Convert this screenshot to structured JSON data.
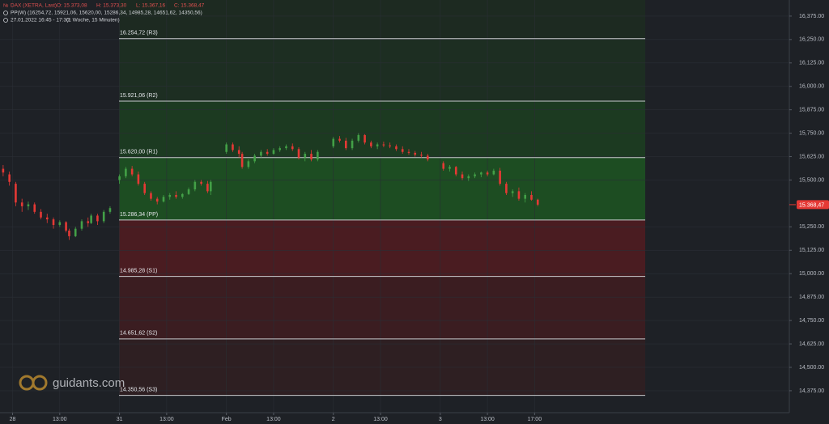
{
  "chart_data": {
    "type": "candlestick",
    "instrument": "DAX (XETRA, Last)",
    "ohlc_texts": [
      "O: 15.373,08",
      "H: 15.373,30",
      "L: 15.367,16",
      "C: 15.368,47"
    ],
    "indicator": "PP(W)",
    "indicator_values": "(16254,72, 15921,06, 15620,00, 15286,34, 14985,28, 14651,62, 14350,56)",
    "time_range": "27.01.2022 16:45 - 17:30",
    "interval": "(1 Woche, 15 Minuten)",
    "watermark": "guidants.com",
    "up_color": "#43a047",
    "down_color": "#e53935",
    "grid": true,
    "xlim": [
      0,
      251
    ],
    "ylim": [
      14258,
      16461
    ],
    "xticks": [
      {
        "value": 4,
        "label": "28"
      },
      {
        "value": 19,
        "label": "13:00"
      },
      {
        "value": 38,
        "label": "31"
      },
      {
        "value": 53,
        "label": "13:00"
      },
      {
        "value": 72,
        "label": "Feb"
      },
      {
        "value": 87,
        "label": "13:00"
      },
      {
        "value": 106,
        "label": "2"
      },
      {
        "value": 121,
        "label": "13:00"
      },
      {
        "value": 140,
        "label": "3"
      },
      {
        "value": 155,
        "label": "13:00"
      },
      {
        "value": 170,
        "label": "17:00"
      }
    ],
    "yticks": [
      {
        "value": 16375,
        "label": "16,375.00"
      },
      {
        "value": 16250,
        "label": "16,250.00"
      },
      {
        "value": 16125,
        "label": "16,125.00"
      },
      {
        "value": 16000,
        "label": "16,000.00"
      },
      {
        "value": 15875,
        "label": "15,875.00"
      },
      {
        "value": 15750,
        "label": "15,750.00"
      },
      {
        "value": 15625,
        "label": "15,625.00"
      },
      {
        "value": 15500,
        "label": "15,500.00"
      },
      {
        "value": 15250,
        "label": "15,250.00"
      },
      {
        "value": 15125,
        "label": "15,125.00"
      },
      {
        "value": 15000,
        "label": "15,000.00"
      },
      {
        "value": 14875,
        "label": "14,875.00"
      },
      {
        "value": 14750,
        "label": "14,750.00"
      },
      {
        "value": 14625,
        "label": "14,625.00"
      },
      {
        "value": 14500,
        "label": "14,500.00"
      },
      {
        "value": 14375,
        "label": "14,375.00"
      }
    ],
    "pivots": [
      {
        "value": 16254.72,
        "label": "16.254,72 (R3)"
      },
      {
        "value": 15921.06,
        "label": "15.921,06 (R2)"
      },
      {
        "value": 15620.0,
        "label": "15.620,00 (R1)"
      },
      {
        "value": 15286.34,
        "label": "15.286,34 (PP)"
      },
      {
        "value": 14985.28,
        "label": "14.985,28 (S1)"
      },
      {
        "value": 14651.62,
        "label": "14.651,62 (S2)"
      },
      {
        "value": 14350.56,
        "label": "14.350,56 (S3)"
      }
    ],
    "last_price": {
      "value": 15368.47,
      "label": "15.368,47"
    },
    "candles": [
      {
        "x": 1,
        "open": 15560,
        "high": 15580,
        "low": 15520,
        "close": 15540
      },
      {
        "x": 3,
        "open": 15530,
        "high": 15545,
        "low": 15470,
        "close": 15490
      },
      {
        "x": 5,
        "open": 15480,
        "high": 15490,
        "low": 15360,
        "close": 15380
      },
      {
        "x": 7,
        "open": 15380,
        "high": 15400,
        "low": 15330,
        "close": 15360
      },
      {
        "x": 9,
        "open": 15360,
        "high": 15385,
        "low": 15340,
        "close": 15370
      },
      {
        "x": 11,
        "open": 15370,
        "high": 15380,
        "low": 15320,
        "close": 15330
      },
      {
        "x": 13,
        "open": 15330,
        "high": 15345,
        "low": 15290,
        "close": 15300
      },
      {
        "x": 15,
        "open": 15300,
        "high": 15320,
        "low": 15270,
        "close": 15290
      },
      {
        "x": 17,
        "open": 15290,
        "high": 15300,
        "low": 15240,
        "close": 15260
      },
      {
        "x": 19,
        "open": 15260,
        "high": 15285,
        "low": 15250,
        "close": 15275
      },
      {
        "x": 21,
        "open": 15275,
        "high": 15280,
        "low": 15220,
        "close": 15230
      },
      {
        "x": 22,
        "open": 15230,
        "high": 15240,
        "low": 15180,
        "close": 15200
      },
      {
        "x": 24,
        "open": 15200,
        "high": 15250,
        "low": 15195,
        "close": 15240
      },
      {
        "x": 26,
        "open": 15240,
        "high": 15290,
        "low": 15230,
        "close": 15280
      },
      {
        "x": 28,
        "open": 15280,
        "high": 15300,
        "low": 15250,
        "close": 15270
      },
      {
        "x": 29,
        "open": 15270,
        "high": 15320,
        "low": 15265,
        "close": 15310
      },
      {
        "x": 31,
        "open": 15310,
        "high": 15320,
        "low": 15260,
        "close": 15280
      },
      {
        "x": 33,
        "open": 15280,
        "high": 15340,
        "low": 15270,
        "close": 15330
      },
      {
        "x": 35,
        "open": 15330,
        "high": 15360,
        "low": 15320,
        "close": 15350
      },
      {
        "x": 38,
        "open": 15500,
        "high": 15530,
        "low": 15480,
        "close": 15520
      },
      {
        "x": 40,
        "open": 15520,
        "high": 15570,
        "low": 15510,
        "close": 15560
      },
      {
        "x": 42,
        "open": 15560,
        "high": 15575,
        "low": 15520,
        "close": 15530
      },
      {
        "x": 44,
        "open": 15530,
        "high": 15545,
        "low": 15470,
        "close": 15480
      },
      {
        "x": 46,
        "open": 15480,
        "high": 15490,
        "low": 15420,
        "close": 15430
      },
      {
        "x": 48,
        "open": 15430,
        "high": 15440,
        "low": 15390,
        "close": 15400
      },
      {
        "x": 50,
        "open": 15400,
        "high": 15410,
        "low": 15370,
        "close": 15385
      },
      {
        "x": 52,
        "open": 15385,
        "high": 15420,
        "low": 15380,
        "close": 15410
      },
      {
        "x": 54,
        "open": 15410,
        "high": 15430,
        "low": 15395,
        "close": 15420
      },
      {
        "x": 56,
        "open": 15420,
        "high": 15440,
        "low": 15400,
        "close": 15410
      },
      {
        "x": 58,
        "open": 15410,
        "high": 15430,
        "low": 15400,
        "close": 15425
      },
      {
        "x": 60,
        "open": 15425,
        "high": 15460,
        "low": 15420,
        "close": 15450
      },
      {
        "x": 62,
        "open": 15450,
        "high": 15500,
        "low": 15440,
        "close": 15490
      },
      {
        "x": 64,
        "open": 15490,
        "high": 15500,
        "low": 15470,
        "close": 15480
      },
      {
        "x": 66,
        "open": 15480,
        "high": 15495,
        "low": 15430,
        "close": 15440
      },
      {
        "x": 67,
        "open": 15440,
        "high": 15500,
        "low": 15420,
        "close": 15490
      },
      {
        "x": 72,
        "open": 15650,
        "high": 15700,
        "low": 15640,
        "close": 15690
      },
      {
        "x": 74,
        "open": 15690,
        "high": 15700,
        "low": 15650,
        "close": 15660
      },
      {
        "x": 76,
        "open": 15660,
        "high": 15680,
        "low": 15620,
        "close": 15640
      },
      {
        "x": 77,
        "open": 15640,
        "high": 15650,
        "low": 15560,
        "close": 15570
      },
      {
        "x": 79,
        "open": 15570,
        "high": 15610,
        "low": 15560,
        "close": 15600
      },
      {
        "x": 81,
        "open": 15600,
        "high": 15640,
        "low": 15590,
        "close": 15630
      },
      {
        "x": 83,
        "open": 15630,
        "high": 15660,
        "low": 15620,
        "close": 15650
      },
      {
        "x": 85,
        "open": 15650,
        "high": 15665,
        "low": 15630,
        "close": 15640
      },
      {
        "x": 87,
        "open": 15640,
        "high": 15670,
        "low": 15635,
        "close": 15660
      },
      {
        "x": 89,
        "open": 15660,
        "high": 15680,
        "low": 15650,
        "close": 15670
      },
      {
        "x": 91,
        "open": 15670,
        "high": 15690,
        "low": 15660,
        "close": 15680
      },
      {
        "x": 93,
        "open": 15680,
        "high": 15695,
        "low": 15655,
        "close": 15665
      },
      {
        "x": 95,
        "open": 15665,
        "high": 15675,
        "low": 15610,
        "close": 15620
      },
      {
        "x": 97,
        "open": 15620,
        "high": 15650,
        "low": 15600,
        "close": 15640
      },
      {
        "x": 99,
        "open": 15640,
        "high": 15660,
        "low": 15600,
        "close": 15610
      },
      {
        "x": 101,
        "open": 15610,
        "high": 15660,
        "low": 15600,
        "close": 15650
      },
      {
        "x": 106,
        "open": 15680,
        "high": 15730,
        "low": 15670,
        "close": 15720
      },
      {
        "x": 108,
        "open": 15720,
        "high": 15735,
        "low": 15700,
        "close": 15710
      },
      {
        "x": 110,
        "open": 15710,
        "high": 15725,
        "low": 15660,
        "close": 15670
      },
      {
        "x": 112,
        "open": 15670,
        "high": 15720,
        "low": 15660,
        "close": 15710
      },
      {
        "x": 114,
        "open": 15710,
        "high": 15750,
        "low": 15700,
        "close": 15740
      },
      {
        "x": 116,
        "open": 15740,
        "high": 15745,
        "low": 15690,
        "close": 15700
      },
      {
        "x": 118,
        "open": 15700,
        "high": 15710,
        "low": 15670,
        "close": 15680
      },
      {
        "x": 120,
        "open": 15680,
        "high": 15700,
        "low": 15665,
        "close": 15690
      },
      {
        "x": 122,
        "open": 15690,
        "high": 15705,
        "low": 15675,
        "close": 15685
      },
      {
        "x": 124,
        "open": 15685,
        "high": 15700,
        "low": 15670,
        "close": 15680
      },
      {
        "x": 126,
        "open": 15680,
        "high": 15690,
        "low": 15655,
        "close": 15665
      },
      {
        "x": 128,
        "open": 15665,
        "high": 15680,
        "low": 15640,
        "close": 15650
      },
      {
        "x": 130,
        "open": 15650,
        "high": 15665,
        "low": 15635,
        "close": 15645
      },
      {
        "x": 132,
        "open": 15645,
        "high": 15655,
        "low": 15625,
        "close": 15635
      },
      {
        "x": 134,
        "open": 15635,
        "high": 15650,
        "low": 15620,
        "close": 15630
      },
      {
        "x": 136,
        "open": 15630,
        "high": 15640,
        "low": 15600,
        "close": 15610
      },
      {
        "x": 141,
        "open": 15590,
        "high": 15600,
        "low": 15550,
        "close": 15560
      },
      {
        "x": 143,
        "open": 15560,
        "high": 15580,
        "low": 15545,
        "close": 15570
      },
      {
        "x": 145,
        "open": 15570,
        "high": 15575,
        "low": 15520,
        "close": 15530
      },
      {
        "x": 147,
        "open": 15530,
        "high": 15545,
        "low": 15500,
        "close": 15510
      },
      {
        "x": 149,
        "open": 15510,
        "high": 15530,
        "low": 15495,
        "close": 15520
      },
      {
        "x": 151,
        "open": 15520,
        "high": 15540,
        "low": 15510,
        "close": 15530
      },
      {
        "x": 153,
        "open": 15530,
        "high": 15545,
        "low": 15515,
        "close": 15540
      },
      {
        "x": 155,
        "open": 15540,
        "high": 15550,
        "low": 15520,
        "close": 15530
      },
      {
        "x": 157,
        "open": 15530,
        "high": 15560,
        "low": 15525,
        "close": 15550
      },
      {
        "x": 159,
        "open": 15550,
        "high": 15565,
        "low": 15470,
        "close": 15480
      },
      {
        "x": 161,
        "open": 15480,
        "high": 15490,
        "low": 15420,
        "close": 15430
      },
      {
        "x": 163,
        "open": 15430,
        "high": 15450,
        "low": 15410,
        "close": 15440
      },
      {
        "x": 165,
        "open": 15440,
        "high": 15460,
        "low": 15390,
        "close": 15400
      },
      {
        "x": 167,
        "open": 15400,
        "high": 15430,
        "low": 15380,
        "close": 15420
      },
      {
        "x": 169,
        "open": 15420,
        "high": 15440,
        "low": 15390,
        "close": 15395
      },
      {
        "x": 171,
        "open": 15395,
        "high": 15400,
        "low": 15360,
        "close": 15368.47
      }
    ]
  }
}
